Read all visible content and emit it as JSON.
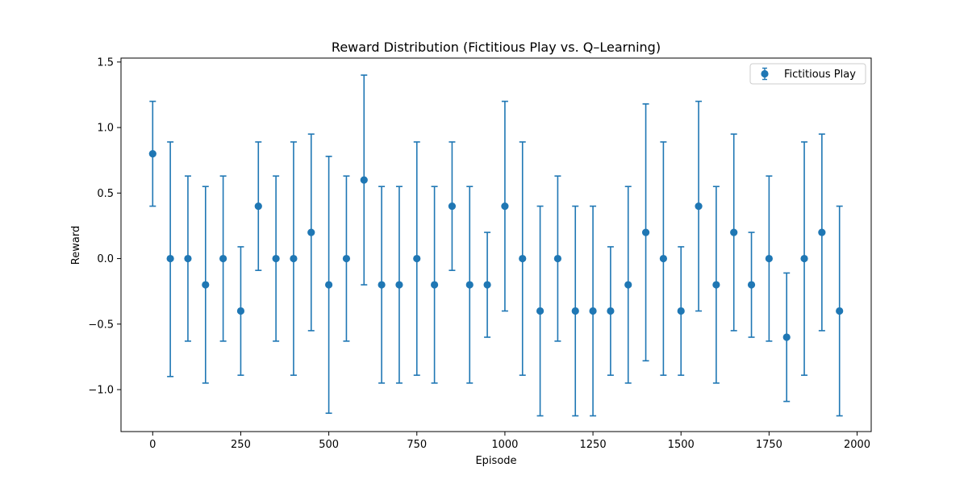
{
  "chart_data": {
    "type": "scatter",
    "title": "Reward Distribution (Fictitious Play vs. Q–Learning)",
    "xlabel": "Episode",
    "ylabel": "Reward",
    "xlim": [
      -90,
      2040
    ],
    "ylim": [
      -1.32,
      1.53
    ],
    "xticks": [
      0,
      250,
      500,
      750,
      1000,
      1250,
      1500,
      1750,
      2000
    ],
    "xtick_labels": [
      "0",
      "250",
      "500",
      "750",
      "1000",
      "1250",
      "1500",
      "1750",
      "2000"
    ],
    "yticks": [
      -1.0,
      -0.5,
      0.0,
      0.5,
      1.0,
      1.5
    ],
    "ytick_labels": [
      "−1.0",
      "−0.5",
      "0.0",
      "0.5",
      "1.0",
      "1.5"
    ],
    "grid": false,
    "legend_position": "top-right",
    "series": [
      {
        "name": "Fictitious Play",
        "color": "#1f77b4",
        "marker": "circle",
        "error_bars": true,
        "points": [
          {
            "x": 0,
            "y": 0.8,
            "lo": 0.4,
            "hi": 1.2
          },
          {
            "x": 50,
            "y": 0.0,
            "lo": -0.9,
            "hi": 0.89
          },
          {
            "x": 100,
            "y": 0.0,
            "lo": -0.63,
            "hi": 0.63
          },
          {
            "x": 150,
            "y": -0.2,
            "lo": -0.95,
            "hi": 0.55
          },
          {
            "x": 200,
            "y": 0.0,
            "lo": -0.63,
            "hi": 0.63
          },
          {
            "x": 250,
            "y": -0.4,
            "lo": -0.89,
            "hi": 0.09
          },
          {
            "x": 300,
            "y": 0.4,
            "lo": -0.09,
            "hi": 0.89
          },
          {
            "x": 350,
            "y": 0.0,
            "lo": -0.63,
            "hi": 0.63
          },
          {
            "x": 400,
            "y": 0.0,
            "lo": -0.89,
            "hi": 0.89
          },
          {
            "x": 450,
            "y": 0.2,
            "lo": -0.55,
            "hi": 0.95
          },
          {
            "x": 500,
            "y": -0.2,
            "lo": -1.18,
            "hi": 0.78
          },
          {
            "x": 550,
            "y": 0.0,
            "lo": -0.63,
            "hi": 0.63
          },
          {
            "x": 600,
            "y": 0.6,
            "lo": -0.2,
            "hi": 1.4
          },
          {
            "x": 650,
            "y": -0.2,
            "lo": -0.95,
            "hi": 0.55
          },
          {
            "x": 700,
            "y": -0.2,
            "lo": -0.95,
            "hi": 0.55
          },
          {
            "x": 750,
            "y": 0.0,
            "lo": -0.89,
            "hi": 0.89
          },
          {
            "x": 800,
            "y": -0.2,
            "lo": -0.95,
            "hi": 0.55
          },
          {
            "x": 850,
            "y": 0.4,
            "lo": -0.09,
            "hi": 0.89
          },
          {
            "x": 900,
            "y": -0.2,
            "lo": -0.95,
            "hi": 0.55
          },
          {
            "x": 950,
            "y": -0.2,
            "lo": -0.6,
            "hi": 0.2
          },
          {
            "x": 1000,
            "y": 0.4,
            "lo": -0.4,
            "hi": 1.2
          },
          {
            "x": 1050,
            "y": 0.0,
            "lo": -0.89,
            "hi": 0.89
          },
          {
            "x": 1100,
            "y": -0.4,
            "lo": -1.2,
            "hi": 0.4
          },
          {
            "x": 1150,
            "y": 0.0,
            "lo": -0.63,
            "hi": 0.63
          },
          {
            "x": 1200,
            "y": -0.4,
            "lo": -1.2,
            "hi": 0.4
          },
          {
            "x": 1250,
            "y": -0.4,
            "lo": -1.2,
            "hi": 0.4
          },
          {
            "x": 1300,
            "y": -0.4,
            "lo": -0.89,
            "hi": 0.09
          },
          {
            "x": 1350,
            "y": -0.2,
            "lo": -0.95,
            "hi": 0.55
          },
          {
            "x": 1400,
            "y": 0.2,
            "lo": -0.78,
            "hi": 1.18
          },
          {
            "x": 1450,
            "y": 0.0,
            "lo": -0.89,
            "hi": 0.89
          },
          {
            "x": 1500,
            "y": -0.4,
            "lo": -0.89,
            "hi": 0.09
          },
          {
            "x": 1550,
            "y": 0.4,
            "lo": -0.4,
            "hi": 1.2
          },
          {
            "x": 1600,
            "y": -0.2,
            "lo": -0.95,
            "hi": 0.55
          },
          {
            "x": 1650,
            "y": 0.2,
            "lo": -0.55,
            "hi": 0.95
          },
          {
            "x": 1700,
            "y": -0.2,
            "lo": -0.6,
            "hi": 0.2
          },
          {
            "x": 1750,
            "y": 0.0,
            "lo": -0.63,
            "hi": 0.63
          },
          {
            "x": 1800,
            "y": -0.6,
            "lo": -1.09,
            "hi": -0.11
          },
          {
            "x": 1850,
            "y": 0.0,
            "lo": -0.89,
            "hi": 0.89
          },
          {
            "x": 1900,
            "y": 0.2,
            "lo": -0.55,
            "hi": 0.95
          },
          {
            "x": 1950,
            "y": -0.4,
            "lo": -1.2,
            "hi": 0.4
          }
        ]
      }
    ]
  }
}
